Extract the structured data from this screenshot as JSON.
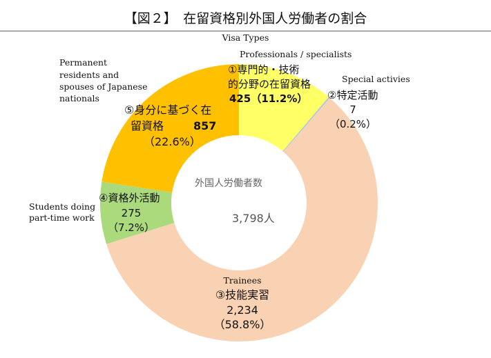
{
  "chart_data": {
    "type": "pie",
    "title": "【図２】　在留資格別外国人労働者の割合",
    "subtitle": "Visa Types",
    "center_label": "外国人労働者数",
    "center_value": "3,798人",
    "total": 3798,
    "slices": [
      {
        "name": "①専門的・技術的分野の在留資格",
        "english": "Professionals / specialists",
        "value": 425,
        "value_label": "425",
        "percent": 11.2,
        "percent_label": "（11.2%）",
        "color": "#FFFF66"
      },
      {
        "name": "②特定活動",
        "english": "Special activies",
        "value": 7,
        "value_label": "7",
        "percent": 0.2,
        "percent_label": "（0.2%）",
        "color": "#B4C7D9"
      },
      {
        "name": "③技能実習",
        "english": "Trainees",
        "value": 2234,
        "value_label": "2,234",
        "percent": 58.8,
        "percent_label": "（58.8%）",
        "color": "#F9D2B3"
      },
      {
        "name": "④資格外活動",
        "english": "Students doing part-time work",
        "value": 275,
        "value_label": "275",
        "percent": 7.2,
        "percent_label": "（7.2%）",
        "color": "#AADA7C"
      },
      {
        "name": "⑤身分に基づく在留資格",
        "english": "Permanent residents and spouses of Japanese nationals",
        "value": 857,
        "value_label": "857",
        "percent": 22.6,
        "percent_label": "（22.6%）",
        "color": "#FFC000"
      }
    ]
  },
  "labels": {
    "s1_line1": "①専門的・技術",
    "s1_line2": "的分野の在留資格",
    "s5_line1": "⑤身分に基づく在",
    "s5_line2": "留資格",
    "en5_1": "Permanent",
    "en5_2": "residents and",
    "en5_3": "spouses of Japanese",
    "en5_4": "nationals",
    "en4_1": "Students doing",
    "en4_2": "part-time work"
  }
}
